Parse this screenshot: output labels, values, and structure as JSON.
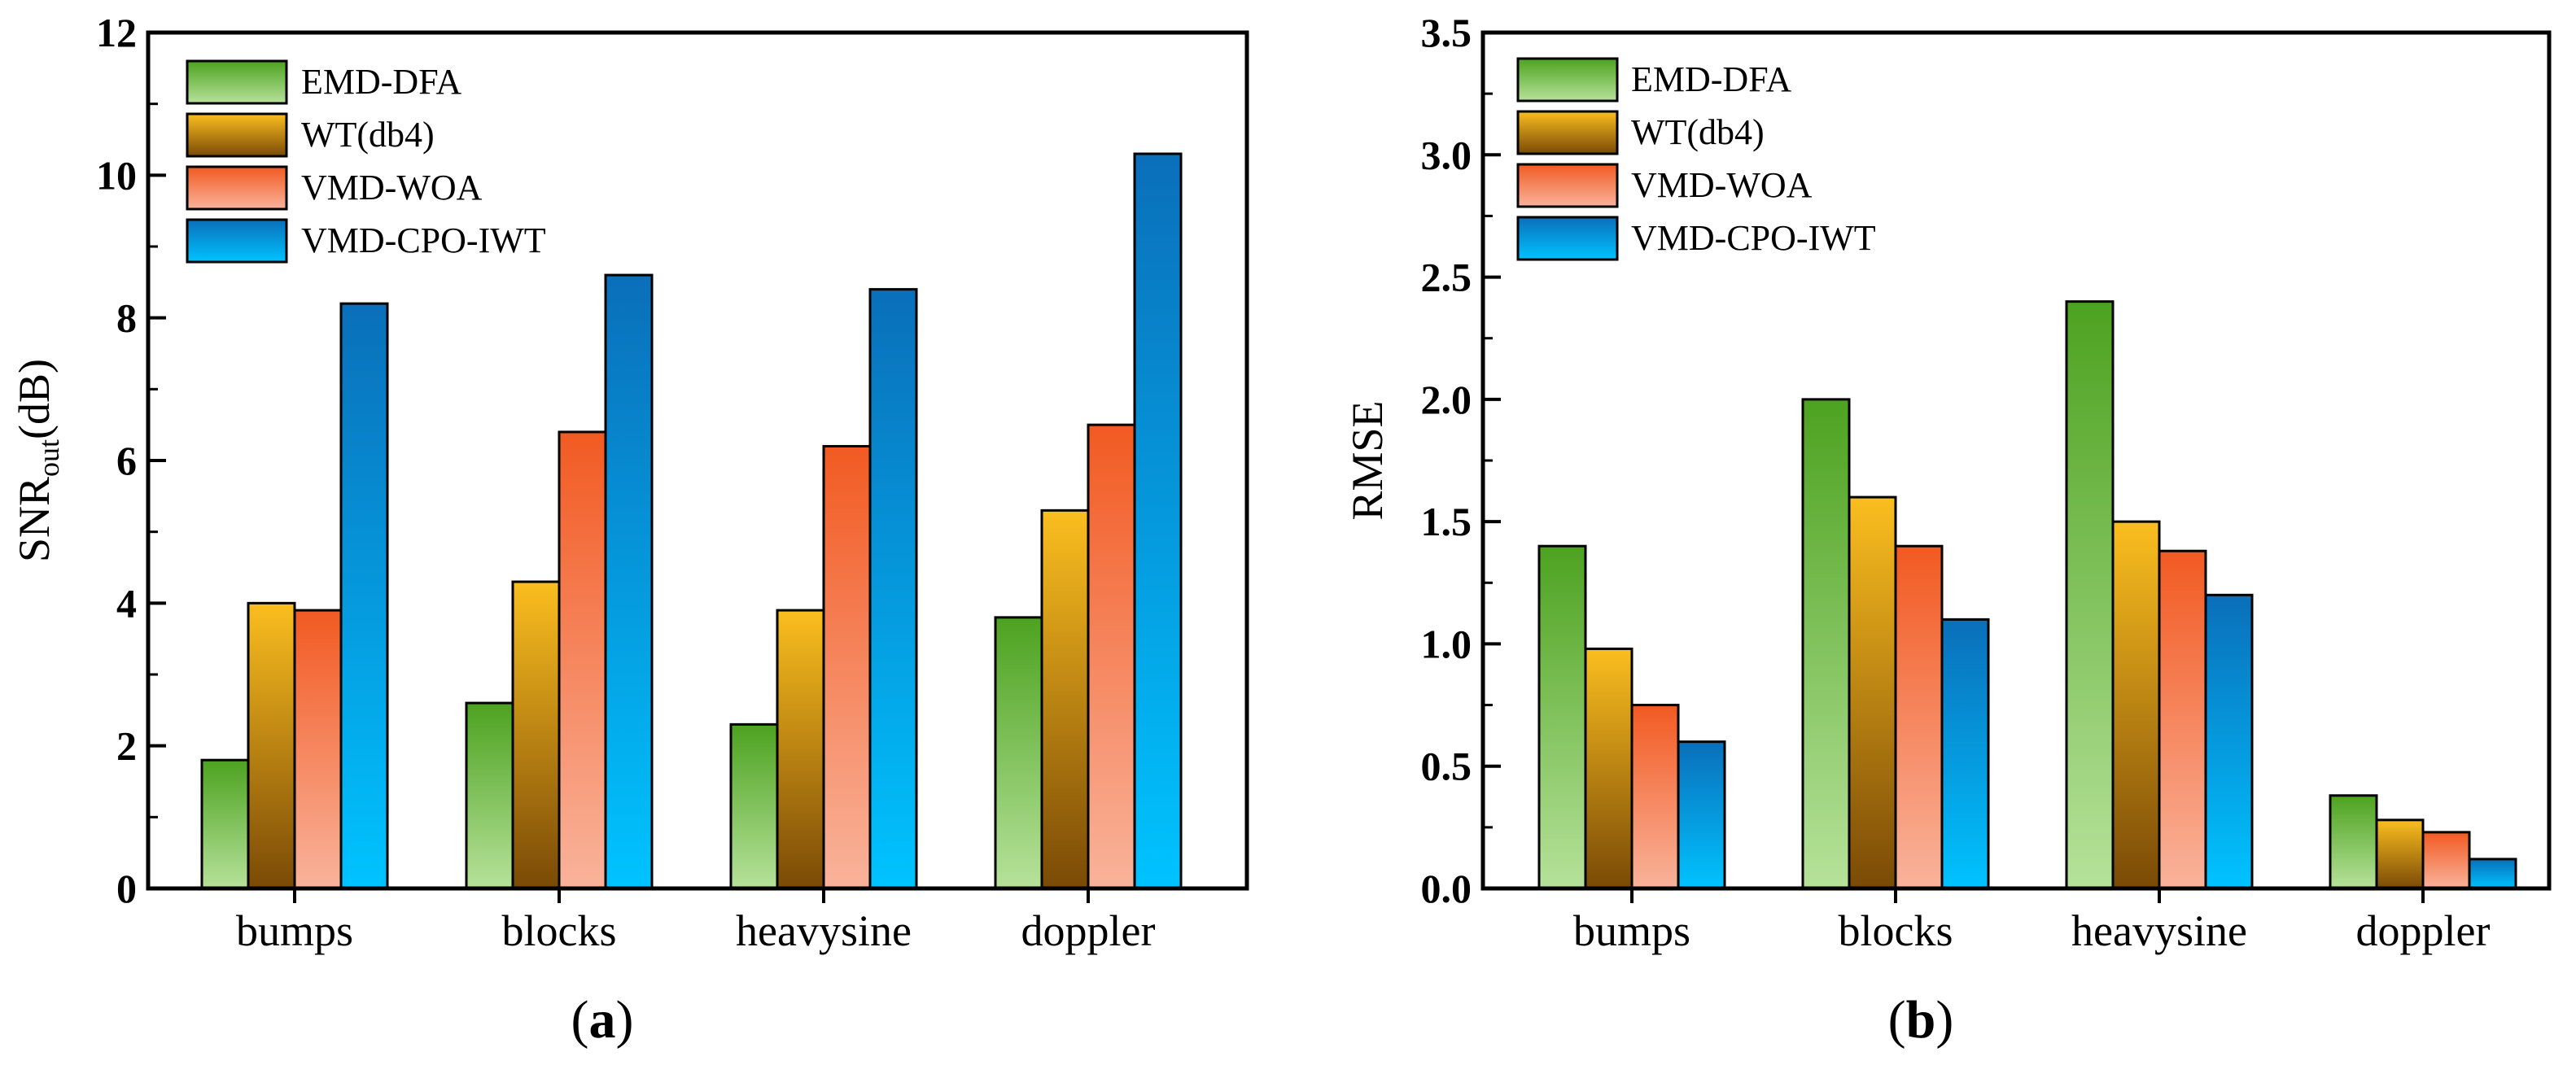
{
  "chart_data": [
    {
      "type": "bar",
      "panel_label": "a",
      "title": "",
      "xlabel": "",
      "ylabel": {
        "prefix": "SNR",
        "subscript": "out",
        "suffix": "(dB)"
      },
      "ylim": [
        0,
        12
      ],
      "yticks": [
        "0",
        "2",
        "4",
        "6",
        "8",
        "10",
        "12"
      ],
      "categories": [
        "bumps",
        "blocks",
        "heavysine",
        "doppler"
      ],
      "series": [
        {
          "name": "EMD-DFA",
          "values": [
            1.8,
            2.6,
            2.3,
            3.8
          ]
        },
        {
          "name": "WT(db4)",
          "values": [
            4.0,
            4.3,
            3.9,
            5.3
          ]
        },
        {
          "name": "VMD-WOA",
          "values": [
            3.9,
            6.4,
            6.2,
            6.5
          ]
        },
        {
          "name": "VMD-CPO-IWT",
          "values": [
            8.2,
            8.6,
            8.4,
            10.3
          ]
        }
      ],
      "legend": "top-left",
      "grid": false
    },
    {
      "type": "bar",
      "panel_label": "b",
      "title": "",
      "xlabel": "",
      "ylabel": {
        "prefix": "RMSE",
        "subscript": "",
        "suffix": ""
      },
      "ylim": [
        0,
        3.5
      ],
      "yticks": [
        "0.0",
        "0.5",
        "1.0",
        "1.5",
        "2.0",
        "2.5",
        "3.0",
        "3.5"
      ],
      "categories": [
        "bumps",
        "blocks",
        "heavysine",
        "doppler"
      ],
      "series": [
        {
          "name": "EMD-DFA",
          "values": [
            1.4,
            2.0,
            2.4,
            0.38
          ]
        },
        {
          "name": "WT(db4)",
          "values": [
            0.98,
            1.6,
            1.5,
            0.28
          ]
        },
        {
          "name": "VMD-WOA",
          "values": [
            0.75,
            1.4,
            1.38,
            0.23
          ]
        },
        {
          "name": "VMD-CPO-IWT",
          "values": [
            0.6,
            1.1,
            1.2,
            0.12
          ]
        }
      ],
      "legend": "top-left",
      "grid": false
    }
  ],
  "series_colors": [
    {
      "top": "#4da220",
      "bottom": "#b6e29a"
    },
    {
      "top": "#fbbe1f",
      "bottom": "#7a4a06"
    },
    {
      "top": "#f25a22",
      "bottom": "#f9b39b"
    },
    {
      "top": "#0a6fba",
      "bottom": "#00c3ff"
    }
  ]
}
